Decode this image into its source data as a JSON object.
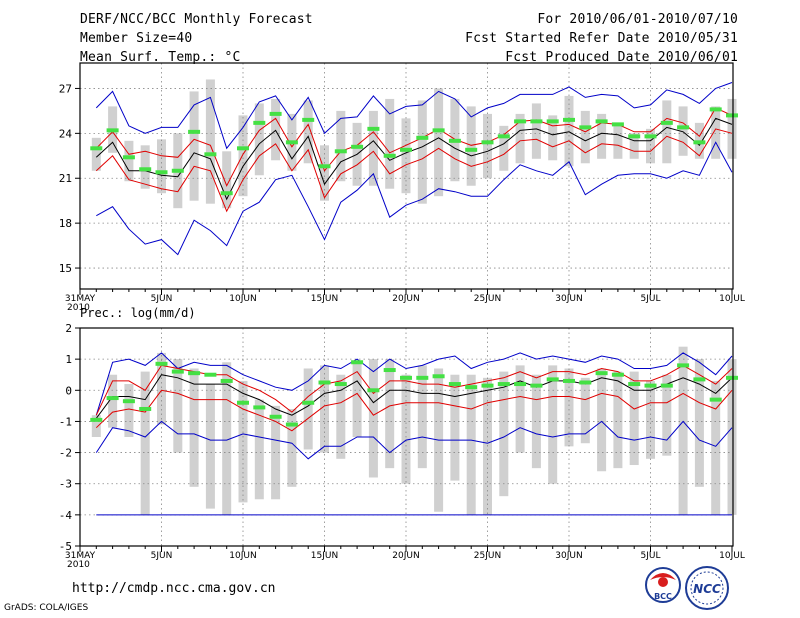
{
  "header": {
    "title": "DERF/NCC/BCC Monthly Forecast",
    "member_size": "Member Size=40",
    "variable": "Mean Surf. Temp.: °C",
    "period": "For 2010/06/01-2010/07/10",
    "started": "Fcst Started Refer Date 2010/05/31",
    "produced": "Fcst Produced Date 2010/06/01"
  },
  "footer": {
    "url": "http://cmdp.ncc.cma.gov.cn",
    "credit": "GrADS: COLA/IGES",
    "logo_left_text": "BCC",
    "logo_right_text": "NCC"
  },
  "colors": {
    "box": "#d0d0d0",
    "observed": "#44e044",
    "ensemble_mean": "#000000",
    "inner_band": "#e00000",
    "outer_band": "#0000c8",
    "grid": "#888888"
  },
  "chart_data": [
    {
      "type": "box-line",
      "name": "temperature",
      "title": "Mean Surf. Temp.: °C",
      "x_tick_labels": [
        "31MAY",
        "5JUN",
        "10JUN",
        "15JUN",
        "20JUN",
        "25JUN",
        "30JUN",
        "5JUL",
        "10JUL"
      ],
      "x_year_label": "2010",
      "dates": [
        "06/01",
        "06/02",
        "06/03",
        "06/04",
        "06/05",
        "06/06",
        "06/07",
        "06/08",
        "06/09",
        "06/10",
        "06/11",
        "06/12",
        "06/13",
        "06/14",
        "06/15",
        "06/16",
        "06/17",
        "06/18",
        "06/19",
        "06/20",
        "06/21",
        "06/22",
        "06/23",
        "06/24",
        "06/25",
        "06/26",
        "06/27",
        "06/28",
        "06/29",
        "06/30",
        "07/01",
        "07/02",
        "07/03",
        "07/04",
        "07/05",
        "07/06",
        "07/07",
        "07/08",
        "07/09",
        "07/10"
      ],
      "y_ticks": [
        15,
        18,
        21,
        24,
        27
      ],
      "ylim": [
        13.6,
        28.7
      ],
      "box_low": [
        21.5,
        22.7,
        20.8,
        20.3,
        20.0,
        19.0,
        19.5,
        19.3,
        19.0,
        19.8,
        21.2,
        22.2,
        21.5,
        22.0,
        19.5,
        20.8,
        20.5,
        20.5,
        20.3,
        20.0,
        19.3,
        19.8,
        20.8,
        20.5,
        21.0,
        21.5,
        22.0,
        22.3,
        22.2,
        21.8,
        22.0,
        22.3,
        22.3,
        22.3,
        22.0,
        22.0,
        22.5,
        22.3,
        22.3,
        22.3
      ],
      "box_high": [
        23.7,
        25.8,
        23.5,
        23.2,
        23.6,
        24.0,
        26.8,
        27.6,
        22.8,
        25.2,
        26.0,
        26.3,
        25.3,
        26.2,
        23.2,
        25.5,
        24.7,
        25.5,
        26.3,
        25.0,
        26.2,
        27.0,
        26.3,
        25.8,
        25.3,
        24.5,
        25.3,
        26.0,
        25.2,
        26.5,
        25.5,
        25.3,
        24.7,
        24.0,
        24.3,
        26.2,
        25.8,
        24.7,
        25.8,
        26.3
      ],
      "observed": [
        23.0,
        24.2,
        22.4,
        21.6,
        21.4,
        21.5,
        24.1,
        22.6,
        20.0,
        23.0,
        24.7,
        25.3,
        23.4,
        24.9,
        21.8,
        22.8,
        23.1,
        24.3,
        22.5,
        22.9,
        23.7,
        24.2,
        23.5,
        22.9,
        23.4,
        23.8,
        24.8,
        24.8,
        24.8,
        24.9,
        24.4,
        24.8,
        24.6,
        23.8,
        23.8,
        24.7,
        24.4,
        23.4,
        25.6,
        25.2
      ],
      "ensemble_mean": [
        22.4,
        23.4,
        21.5,
        21.5,
        21.2,
        21.1,
        22.7,
        22.3,
        19.6,
        21.8,
        23.3,
        24.2,
        22.3,
        23.8,
        20.6,
        22.1,
        22.6,
        23.5,
        22.2,
        22.7,
        23.1,
        23.7,
        23.0,
        22.5,
        22.8,
        23.3,
        24.2,
        24.3,
        23.9,
        24.1,
        23.5,
        24.0,
        23.9,
        23.5,
        23.5,
        24.4,
        24.1,
        23.2,
        25.0,
        24.6
      ],
      "inner_upper": [
        23.0,
        24.1,
        22.6,
        22.8,
        22.5,
        22.4,
        23.6,
        23.2,
        20.5,
        22.6,
        24.2,
        25.0,
        23.1,
        24.6,
        21.5,
        22.8,
        23.2,
        24.1,
        22.7,
        23.2,
        23.7,
        24.3,
        23.6,
        23.2,
        23.4,
        23.9,
        24.8,
        24.9,
        24.5,
        24.6,
        24.1,
        24.7,
        24.6,
        24.1,
        24.1,
        25.0,
        24.7,
        23.8,
        25.7,
        25.2
      ],
      "inner_lower": [
        21.5,
        22.5,
        20.9,
        20.6,
        20.3,
        20.1,
        21.8,
        21.5,
        18.8,
        20.9,
        22.5,
        23.3,
        21.5,
        22.9,
        19.7,
        21.3,
        21.9,
        22.8,
        21.3,
        21.9,
        22.3,
        23.0,
        22.3,
        21.8,
        22.1,
        22.6,
        23.5,
        23.6,
        23.1,
        23.5,
        22.7,
        23.3,
        23.2,
        22.8,
        22.8,
        23.8,
        23.4,
        22.5,
        24.3,
        24.0
      ],
      "outer_upper": [
        25.7,
        26.8,
        24.5,
        24.0,
        24.4,
        24.4,
        25.9,
        26.4,
        23.0,
        24.4,
        26.1,
        26.5,
        24.9,
        26.4,
        24.0,
        25.0,
        25.1,
        26.5,
        25.3,
        25.8,
        25.9,
        26.8,
        26.3,
        25.1,
        25.7,
        26.0,
        26.6,
        26.6,
        26.6,
        27.1,
        26.4,
        26.6,
        26.5,
        25.7,
        25.9,
        26.9,
        26.6,
        26.0,
        27.0,
        27.4
      ],
      "outer_lower": [
        18.5,
        19.1,
        17.6,
        16.6,
        16.9,
        15.9,
        18.2,
        17.5,
        16.5,
        18.8,
        19.4,
        20.9,
        21.2,
        19.1,
        16.9,
        19.4,
        20.2,
        21.3,
        18.4,
        19.2,
        19.6,
        20.3,
        20.1,
        19.8,
        19.8,
        20.9,
        21.9,
        21.5,
        21.2,
        22.1,
        19.9,
        20.6,
        21.2,
        21.3,
        21.3,
        21.0,
        21.5,
        21.2,
        23.4,
        21.4
      ]
    },
    {
      "type": "box-line",
      "name": "precipitation",
      "title": "Prec.: log(mm/d)",
      "x_tick_labels": [
        "31MAY",
        "5JUN",
        "10JUN",
        "15JUN",
        "20JUN",
        "25JUN",
        "30JUN",
        "5JUL",
        "10JUL"
      ],
      "x_year_label": "2010",
      "dates": [
        "06/01",
        "06/02",
        "06/03",
        "06/04",
        "06/05",
        "06/06",
        "06/07",
        "06/08",
        "06/09",
        "06/10",
        "06/11",
        "06/12",
        "06/13",
        "06/14",
        "06/15",
        "06/16",
        "06/17",
        "06/18",
        "06/19",
        "06/20",
        "06/21",
        "06/22",
        "06/23",
        "06/24",
        "06/25",
        "06/26",
        "06/27",
        "06/28",
        "06/29",
        "06/30",
        "07/01",
        "07/02",
        "07/03",
        "07/04",
        "07/05",
        "07/06",
        "07/07",
        "07/08",
        "07/09",
        "07/10"
      ],
      "y_ticks": [
        -5,
        -4,
        -3,
        -2,
        -1,
        0,
        1,
        2
      ],
      "ylim": [
        -5,
        2
      ],
      "floor_line": -4,
      "box_low": [
        -1.5,
        -1.2,
        -1.5,
        -4.0,
        -1.1,
        -2.0,
        -3.1,
        -3.8,
        -4.0,
        -3.6,
        -3.5,
        -3.5,
        -3.1,
        -1.9,
        -2.0,
        -2.2,
        -1.5,
        -2.8,
        -2.5,
        -3.0,
        -2.5,
        -3.9,
        -2.9,
        -4.0,
        -4.0,
        -3.4,
        -2.0,
        -2.5,
        -3.0,
        -1.8,
        -1.7,
        -2.6,
        -2.5,
        -2.4,
        -2.2,
        -2.1,
        -4.0,
        -3.1,
        -4.0,
        -4.0
      ],
      "box_high": [
        -0.8,
        0.5,
        0.2,
        0.6,
        1.2,
        1.0,
        0.7,
        0.2,
        0.9,
        0.3,
        -0.3,
        -0.5,
        -0.6,
        0.7,
        0.8,
        0.5,
        0.9,
        1.0,
        1.0,
        0.5,
        0.8,
        0.7,
        0.5,
        0.5,
        0.4,
        0.6,
        0.8,
        0.5,
        0.8,
        0.7,
        0.4,
        0.7,
        0.6,
        0.6,
        0.3,
        0.5,
        1.4,
        1.0,
        0.3,
        1.0
      ],
      "observed": [
        -0.95,
        -0.25,
        -0.35,
        -0.6,
        0.85,
        0.6,
        0.55,
        0.5,
        0.3,
        -0.4,
        -0.55,
        -0.85,
        -1.1,
        -0.4,
        0.25,
        0.2,
        0.9,
        0.0,
        0.65,
        0.4,
        0.4,
        0.45,
        0.2,
        0.1,
        0.15,
        0.2,
        0.2,
        0.15,
        0.35,
        0.3,
        0.25,
        0.55,
        0.5,
        0.2,
        0.15,
        0.15,
        0.8,
        0.35,
        -0.3,
        0.4
      ],
      "ensemble_mean": [
        -0.9,
        -0.2,
        -0.2,
        -0.3,
        0.5,
        0.4,
        0.2,
        0.2,
        0.2,
        -0.1,
        -0.3,
        -0.6,
        -0.8,
        -0.5,
        -0.1,
        0.0,
        0.3,
        -0.4,
        0.0,
        0.0,
        -0.1,
        -0.1,
        -0.2,
        -0.1,
        0.0,
        0.1,
        0.3,
        0.1,
        0.3,
        0.3,
        0.2,
        0.4,
        0.3,
        0.0,
        0.0,
        0.2,
        0.4,
        0.2,
        -0.1,
        0.4
      ],
      "inner_upper": [
        -0.8,
        0.3,
        0.3,
        0.0,
        0.8,
        0.7,
        0.6,
        0.5,
        0.5,
        0.2,
        0.0,
        -0.3,
        -0.7,
        -0.2,
        0.2,
        0.3,
        0.6,
        -0.1,
        0.3,
        0.3,
        0.2,
        0.2,
        0.1,
        0.2,
        0.3,
        0.4,
        0.6,
        0.4,
        0.6,
        0.6,
        0.5,
        0.7,
        0.6,
        0.3,
        0.3,
        0.5,
        0.8,
        0.5,
        0.2,
        0.7
      ],
      "inner_lower": [
        -1.2,
        -0.7,
        -0.6,
        -0.7,
        0.0,
        -0.1,
        -0.3,
        -0.3,
        -0.3,
        -0.6,
        -0.8,
        -1.0,
        -1.3,
        -0.9,
        -0.5,
        -0.4,
        -0.1,
        -0.8,
        -0.5,
        -0.4,
        -0.4,
        -0.4,
        -0.5,
        -0.6,
        -0.4,
        -0.3,
        -0.2,
        -0.3,
        -0.2,
        -0.2,
        -0.3,
        -0.1,
        -0.2,
        -0.6,
        -0.4,
        -0.4,
        -0.1,
        -0.4,
        -0.6,
        0.0
      ],
      "outer_upper": [
        -0.8,
        0.9,
        1.0,
        0.8,
        1.2,
        0.7,
        0.9,
        0.8,
        0.8,
        0.5,
        0.3,
        0.1,
        0.0,
        0.3,
        0.8,
        0.7,
        1.0,
        0.6,
        1.0,
        0.7,
        0.8,
        1.0,
        1.1,
        0.7,
        0.9,
        1.0,
        1.2,
        1.0,
        1.1,
        1.0,
        0.9,
        1.1,
        1.0,
        0.7,
        0.7,
        0.8,
        1.2,
        0.9,
        0.5,
        1.1
      ],
      "outer_lower": [
        -2.0,
        -1.2,
        -1.3,
        -1.5,
        -1.0,
        -1.4,
        -1.4,
        -1.6,
        -1.6,
        -1.4,
        -1.5,
        -1.6,
        -1.7,
        -2.2,
        -1.8,
        -1.8,
        -1.5,
        -1.5,
        -2.0,
        -1.6,
        -1.5,
        -1.6,
        -1.6,
        -1.6,
        -1.7,
        -1.5,
        -1.2,
        -1.4,
        -1.5,
        -1.4,
        -1.4,
        -1.0,
        -1.5,
        -1.6,
        -1.5,
        -1.6,
        -1.0,
        -1.6,
        -1.8,
        -1.2
      ]
    }
  ]
}
